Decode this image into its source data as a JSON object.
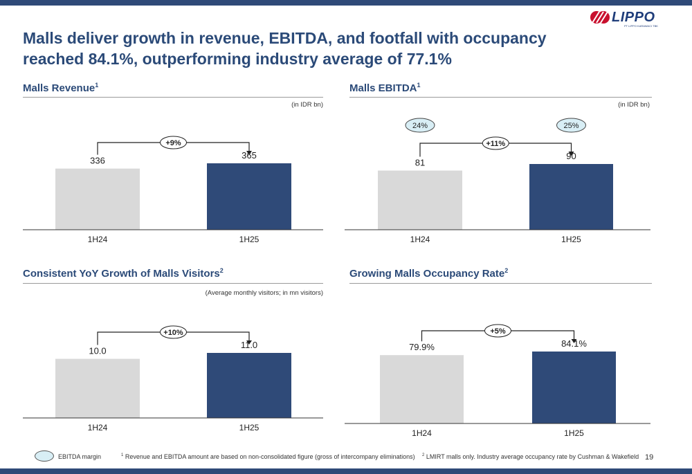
{
  "title": "Malls deliver growth in revenue, EBITDA, and footfall with occupancy reached 84.1%, outperforming industry average of 77.1%",
  "logo": {
    "name": "LIPPO",
    "subtitle": "PT LIPPO KARAWACI TBK",
    "colors": [
      "#c8102e",
      "#1f3d7a"
    ]
  },
  "colors": {
    "prior": "#d9d9d9",
    "current": "#2f4a78",
    "margin_oval": "#d8eef5",
    "title": "#2b4a78"
  },
  "sections": [
    {
      "title": "Malls Revenue",
      "sup": "1",
      "unit": "(in IDR bn)"
    },
    {
      "title": "Malls EBITDA",
      "sup": "1",
      "unit": "(in IDR bn)"
    },
    {
      "title": "Consistent YoY Growth of Malls Visitors",
      "sup": "2",
      "unit": "(Average monthly visitors; in mn visitors)"
    },
    {
      "title": "Growing Malls Occupancy Rate",
      "sup": "2",
      "unit": ""
    }
  ],
  "chart_data": [
    {
      "type": "bar",
      "categories": [
        "1H24",
        "1H25"
      ],
      "values": [
        336,
        365
      ],
      "labels": [
        "336",
        "365"
      ],
      "growth": "+9%",
      "margins": [],
      "ylim": [
        0,
        400
      ]
    },
    {
      "type": "bar",
      "categories": [
        "1H24",
        "1H25"
      ],
      "values": [
        81,
        90
      ],
      "labels": [
        "81",
        "90"
      ],
      "growth": "+11%",
      "margins": [
        "24%",
        "25%"
      ],
      "ylim": [
        0,
        100
      ]
    },
    {
      "type": "bar",
      "categories": [
        "1H24",
        "1H25"
      ],
      "values": [
        10.0,
        11.0
      ],
      "labels": [
        "10.0",
        "11.0"
      ],
      "growth": "+10%",
      "margins": [],
      "ylim": [
        0,
        12
      ]
    },
    {
      "type": "bar",
      "categories": [
        "1H24",
        "1H25"
      ],
      "values": [
        79.9,
        84.1
      ],
      "labels": [
        "79.9%",
        "84.1%"
      ],
      "growth": "+5%",
      "margins": [],
      "ylim": [
        0,
        92
      ]
    }
  ],
  "footer": {
    "legend_label": "EBITDA margin",
    "note1_sup": "1",
    "note1": "Revenue and EBITDA amount are based on non-consolidated figure (gross of intercompany eliminations)",
    "note2_sup": "2",
    "note2": "LMIRT malls only. Industry average occupancy rate by Cushman & Wakefield",
    "page": "19"
  }
}
